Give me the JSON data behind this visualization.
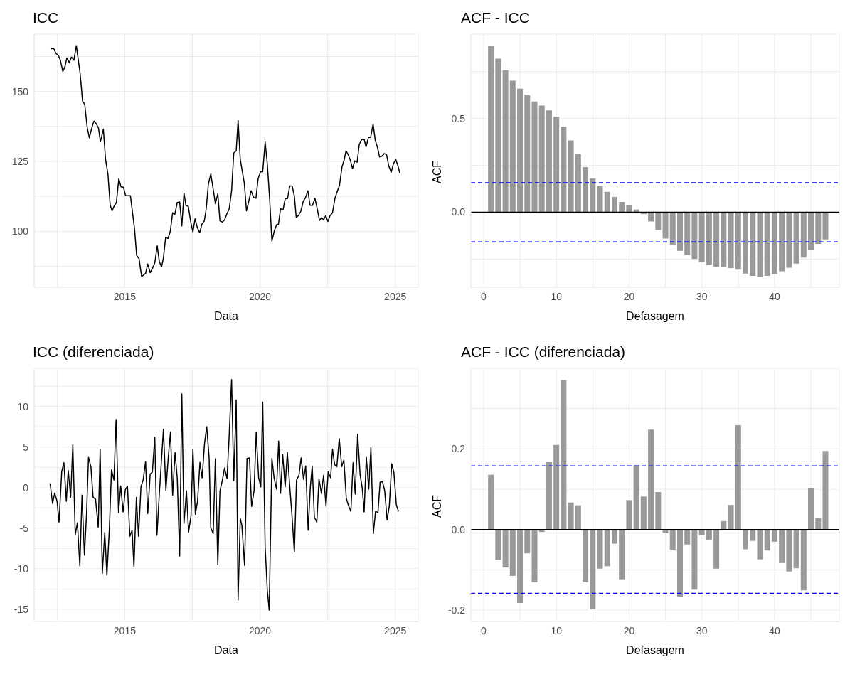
{
  "chart_data": [
    {
      "type": "line",
      "title": "ICC",
      "xlabel": "Data",
      "color": "#000000",
      "grid": true,
      "xlim": [
        2011.65,
        2025.85
      ],
      "xticks": [
        {
          "value": 2012.5,
          "label": null
        },
        2015,
        {
          "value": 2017.5,
          "label": null
        },
        2020,
        {
          "value": 2022.5,
          "label": null
        },
        2025
      ],
      "ylim": [
        80,
        170.5
      ],
      "yticks": [
        {
          "value": 87.5,
          "label": null
        },
        100,
        {
          "value": 112.5,
          "label": null
        },
        125,
        {
          "value": 137.5,
          "label": null
        },
        150,
        {
          "value": 162.5,
          "label": null
        }
      ],
      "x": [
        2012.28,
        2012.37,
        2012.45,
        2012.54,
        2012.62,
        2012.71,
        2012.79,
        2012.86,
        2012.95,
        2013.03,
        2013.12,
        2013.21,
        2013.35,
        2013.44,
        2013.52,
        2013.61,
        2013.69,
        2013.78,
        2013.86,
        2013.95,
        2014.03,
        2014.1,
        2014.21,
        2014.29,
        2014.38,
        2014.46,
        2014.53,
        2014.61,
        2014.69,
        2014.78,
        2014.86,
        2014.95,
        2015.03,
        2015.21,
        2015.36,
        2015.44,
        2015.53,
        2015.62,
        2015.68,
        2015.77,
        2015.85,
        2015.94,
        2016.03,
        2016.11,
        2016.2,
        2016.28,
        2016.36,
        2016.43,
        2016.51,
        2016.6,
        2016.68,
        2016.77,
        2016.85,
        2016.94,
        2017.03,
        2017.11,
        2017.19,
        2017.26,
        2017.35,
        2017.44,
        2017.52,
        2017.6,
        2017.68,
        2017.77,
        2017.85,
        2017.94,
        2018.01,
        2018.09,
        2018.18,
        2018.26,
        2018.35,
        2018.44,
        2018.52,
        2018.61,
        2018.69,
        2018.78,
        2018.86,
        2018.95,
        2019.03,
        2019.12,
        2019.19,
        2019.27,
        2019.42,
        2019.5,
        2019.59,
        2019.67,
        2019.76,
        2019.85,
        2019.93,
        2020.02,
        2020.1,
        2020.19,
        2020.27,
        2020.36,
        2020.44,
        2020.53,
        2020.62,
        2020.68,
        2020.76,
        2020.85,
        2020.93,
        2021.02,
        2021.1,
        2021.19,
        2021.27,
        2021.34,
        2021.43,
        2021.51,
        2021.6,
        2021.68,
        2021.77,
        2021.85,
        2021.94,
        2022.03,
        2022.11,
        2022.2,
        2022.28,
        2022.35,
        2022.43,
        2022.51,
        2022.59,
        2022.68,
        2022.77,
        2022.85,
        2022.94,
        2023.03,
        2023.11,
        2023.18,
        2023.26,
        2023.35,
        2023.42,
        2023.5,
        2023.59,
        2023.67,
        2023.76,
        2023.85,
        2023.92,
        2024.01,
        2024.09,
        2024.18,
        2024.26,
        2024.35,
        2024.42,
        2024.51,
        2024.59,
        2024.68,
        2024.76,
        2024.85,
        2024.93,
        2025.02,
        2025.1,
        2025.17
      ],
      "values": [
        165.2,
        165.5,
        163.7,
        162.9,
        161.2,
        157.1,
        158.9,
        162.0,
        160.3,
        162.3,
        161.2,
        166.4,
        156.5,
        146.5,
        145.4,
        137.3,
        133.4,
        136.9,
        139.4,
        138.4,
        136.9,
        132.0,
        136.5,
        125.7,
        120.3,
        109.5,
        107.3,
        109.1,
        110.3,
        118.8,
        115.9,
        115.8,
        112.8,
        112.7,
        101.0,
        91.4,
        90.2,
        84.0,
        84.2,
        85.0,
        88.3,
        85.2,
        86.9,
        88.7,
        94.8,
        89.1,
        87.3,
        90.6,
        97.7,
        97.5,
        99.8,
        106.6,
        106.0,
        110.3,
        110.5,
        101.9,
        113.7,
        109.3,
        108.9,
        103.3,
        99.8,
        104.5,
        101.4,
        99.5,
        102.5,
        103.7,
        107.9,
        116.8,
        120.5,
        115.7,
        109.9,
        113.4,
        103.7,
        103.3,
        104.1,
        106.4,
        107.9,
        114.5,
        128.0,
        128.8,
        139.6,
        125.7,
        117.2,
        107.3,
        111.0,
        114.5,
        112.2,
        111.8,
        118.8,
        121.3,
        121.3,
        131.9,
        124.1,
        111.0,
        96.5,
        100.2,
        102.5,
        102.4,
        108.1,
        107.6,
        111.6,
        111.8,
        116.2,
        116.2,
        112.6,
        104.9,
        105.8,
        107.2,
        110.8,
        112.0,
        114.5,
        109.3,
        109.3,
        111.8,
        108.3,
        103.9,
        104.9,
        104.1,
        105.6,
        103.5,
        105.6,
        106.6,
        111.8,
        114.1,
        116.4,
        123.0,
        125.5,
        128.8,
        127.4,
        125.1,
        122.4,
        125.2,
        124.7,
        131.1,
        132.8,
        132.8,
        130.1,
        133.6,
        133.6,
        138.4,
        132.6,
        129.7,
        126.6,
        126.9,
        127.8,
        127.4,
        123.4,
        121.1,
        124.1,
        125.7,
        123.4,
        120.7
      ]
    },
    {
      "type": "bar",
      "title": "ACF - ICC",
      "xlabel": "Defasagem",
      "ylabel": "ACF",
      "color": "#999999",
      "grid": true,
      "xlim": [
        -1.76,
        48.9
      ],
      "xticks": [
        0,
        {
          "value": 5,
          "label": null
        },
        10,
        {
          "value": 15,
          "label": null
        },
        20,
        {
          "value": 25,
          "label": null
        },
        30,
        {
          "value": 35,
          "label": null
        },
        40,
        {
          "value": 45,
          "label": null
        }
      ],
      "ylim": [
        -0.4,
        0.95
      ],
      "yticks": [
        {
          "value": -0.25,
          "label": null
        },
        {
          "value": 0,
          "label": "0.0"
        },
        {
          "value": 0.25,
          "label": null
        },
        0.5,
        {
          "value": 0.75,
          "label": null
        }
      ],
      "x": [
        1,
        2,
        3,
        4,
        5,
        6,
        7,
        8,
        9,
        10,
        11,
        12,
        13,
        14,
        15,
        16,
        17,
        18,
        19,
        20,
        21,
        22,
        23,
        24,
        25,
        26,
        27,
        28,
        29,
        30,
        31,
        32,
        33,
        34,
        35,
        36,
        37,
        38,
        39,
        40,
        41,
        42,
        43,
        44,
        45,
        46,
        47
      ],
      "values": [
        0.887,
        0.819,
        0.758,
        0.702,
        0.659,
        0.624,
        0.591,
        0.569,
        0.543,
        0.509,
        0.456,
        0.383,
        0.31,
        0.241,
        0.18,
        0.14,
        0.109,
        0.082,
        0.055,
        0.037,
        0.015,
        -0.01,
        -0.049,
        -0.094,
        -0.14,
        -0.176,
        -0.206,
        -0.228,
        -0.249,
        -0.265,
        -0.279,
        -0.291,
        -0.293,
        -0.298,
        -0.306,
        -0.327,
        -0.339,
        -0.343,
        -0.339,
        -0.329,
        -0.315,
        -0.296,
        -0.274,
        -0.242,
        -0.202,
        -0.169,
        -0.145
      ],
      "ref_lines": [
        {
          "axis": "y",
          "value": 0,
          "color": "#000000",
          "line_style": "solid"
        },
        {
          "axis": "y",
          "value": 0.158,
          "color": "#0000ff",
          "line_style": "dashed"
        },
        {
          "axis": "y",
          "value": -0.158,
          "color": "#0000ff",
          "line_style": "dashed"
        }
      ]
    },
    {
      "type": "line",
      "title": "ICC (diferenciada)",
      "xlabel": "Data",
      "color": "#000000",
      "grid": true,
      "xlim": [
        2011.65,
        2025.85
      ],
      "xticks": [
        {
          "value": 2012.5,
          "label": null
        },
        2015,
        {
          "value": 2017.5,
          "label": null
        },
        2020,
        {
          "value": 2022.5,
          "label": null
        },
        2025
      ],
      "ylim": [
        -16.5,
        14.7
      ],
      "yticks": [
        -15,
        {
          "value": -12.5,
          "label": null
        },
        -10,
        {
          "value": -7.5,
          "label": null
        },
        -5,
        {
          "value": -2.5,
          "label": null
        },
        0,
        {
          "value": 2.5,
          "label": null
        },
        5,
        {
          "value": 7.5,
          "label": null
        },
        10,
        {
          "value": 12.5,
          "label": null
        }
      ],
      "x": [
        2012.24,
        2012.33,
        2012.41,
        2012.5,
        2012.57,
        2012.67,
        2012.75,
        2012.84,
        2012.91,
        2013.0,
        2013.08,
        2013.17,
        2013.25,
        2013.34,
        2013.42,
        2013.51,
        2013.59,
        2013.66,
        2013.75,
        2013.83,
        2013.92,
        2014.02,
        2014.09,
        2014.17,
        2014.26,
        2014.34,
        2014.43,
        2014.51,
        2014.6,
        2014.68,
        2014.77,
        2014.85,
        2014.94,
        2015.02,
        2015.1,
        2015.19,
        2015.27,
        2015.34,
        2015.43,
        2015.51,
        2015.6,
        2015.68,
        2015.77,
        2015.85,
        2015.94,
        2016.02,
        2016.11,
        2016.19,
        2016.28,
        2016.43,
        2016.52,
        2016.6,
        2016.69,
        2016.77,
        2016.86,
        2016.94,
        2017.03,
        2017.11,
        2017.19,
        2017.28,
        2017.36,
        2017.45,
        2017.52,
        2017.61,
        2017.69,
        2017.78,
        2017.86,
        2017.95,
        2018.03,
        2018.12,
        2018.18,
        2018.27,
        2018.35,
        2018.44,
        2018.52,
        2018.61,
        2018.69,
        2018.78,
        2018.86,
        2018.95,
        2019.03,
        2019.12,
        2019.19,
        2019.27,
        2019.33,
        2019.43,
        2019.52,
        2019.61,
        2019.69,
        2019.78,
        2019.86,
        2019.95,
        2020.03,
        2020.1,
        2020.19,
        2020.27,
        2020.34,
        2020.44,
        2020.52,
        2020.61,
        2020.69,
        2020.76,
        2020.84,
        2020.93,
        2021.01,
        2021.1,
        2021.18,
        2021.27,
        2021.35,
        2021.44,
        2021.52,
        2021.61,
        2021.69,
        2021.78,
        2021.86,
        2021.93,
        2022.01,
        2022.1,
        2022.18,
        2022.27,
        2022.35,
        2022.44,
        2022.52,
        2022.61,
        2022.68,
        2022.76,
        2022.84,
        2022.93,
        2023.02,
        2023.1,
        2023.19,
        2023.27,
        2023.36,
        2023.44,
        2023.52,
        2023.61,
        2023.7,
        2023.78,
        2023.85,
        2023.93,
        2024.02,
        2024.1,
        2024.19,
        2024.27,
        2024.36,
        2024.44,
        2024.53,
        2024.61,
        2024.7,
        2024.78,
        2024.87,
        2024.95,
        2025.04,
        2025.12
      ],
      "values": [
        0.53,
        -1.95,
        -0.67,
        -1.73,
        -4.27,
        2.0,
        3.07,
        -1.68,
        2.13,
        -1.2,
        5.25,
        -5.79,
        -4.35,
        -9.65,
        -0.93,
        -8.32,
        -3.07,
        3.73,
        2.53,
        -1.2,
        -1.41,
        -4.88,
        4.72,
        -10.59,
        -5.55,
        -10.8,
        -5.2,
        2.19,
        0.93,
        8.4,
        -3.07,
        0.19,
        -3.01,
        -0.27,
        0.19,
        -6.0,
        -5.25,
        -9.73,
        -1.2,
        -6.0,
        0.13,
        0.93,
        3.2,
        -3.2,
        1.65,
        1.92,
        6.19,
        -5.87,
        -0.67,
        7.2,
        -0.35,
        3.33,
        6.85,
        -0.93,
        4.32,
        1.2,
        -8.45,
        11.55,
        -4.4,
        -0.4,
        -5.47,
        -3.47,
        4.72,
        -3.28,
        -1.73,
        3.12,
        1.2,
        5.47,
        7.52,
        3.6,
        -4.93,
        -5.68,
        3.55,
        -9.52,
        -0.4,
        0.93,
        2.4,
        1.12,
        6.4,
        13.33,
        0.85,
        10.8,
        -13.87,
        -3.81,
        -4.67,
        -9.6,
        3.6,
        3.65,
        -2.32,
        -0.4,
        6.8,
        1.2,
        0.08,
        10.53,
        -7.33,
        -12.67,
        -15.12,
        3.6,
        1.2,
        -0.19,
        5.73,
        -0.72,
        4.05,
        0.08,
        4.35,
        0.13,
        -3.33,
        -7.95,
        0.93,
        1.52,
        3.65,
        1.01,
        2.67,
        -5.25,
        0.05,
        2.67,
        -3.65,
        -4.27,
        1.07,
        -0.72,
        1.52,
        -2.27,
        1.95,
        1.2,
        4.72,
        2.8,
        2.59,
        6.05,
        2.59,
        3.39,
        -1.33,
        -2.21,
        -2.93,
        3.07,
        -0.8,
        6.59,
        1.6,
        -0.05,
        -3.01,
        3.73,
        -0.19,
        4.93,
        -5.68,
        -2.93,
        -3.07,
        0.67,
        0.72,
        -0.4,
        -4.0,
        -2.27,
        2.93,
        1.87,
        -2.13,
        -2.93
      ]
    },
    {
      "type": "bar",
      "title": "ACF - ICC (diferenciada)",
      "xlabel": "Defasagem",
      "ylabel": "ACF",
      "color": "#999999",
      "grid": true,
      "xlim": [
        -1.76,
        48.9
      ],
      "xticks": [
        0,
        {
          "value": 5,
          "label": null
        },
        10,
        {
          "value": 15,
          "label": null
        },
        20,
        {
          "value": 25,
          "label": null
        },
        30,
        {
          "value": 35,
          "label": null
        },
        40,
        {
          "value": 45,
          "label": null
        }
      ],
      "ylim": [
        -0.228,
        0.4
      ],
      "yticks": [
        {
          "value": -0.2,
          "label": "-0.2"
        },
        {
          "value": -0.1,
          "label": null
        },
        {
          "value": 0,
          "label": "0.0"
        },
        {
          "value": 0.1,
          "label": null
        },
        0.2,
        {
          "value": 0.3,
          "label": null
        }
      ],
      "x": [
        1,
        2,
        3,
        4,
        5,
        6,
        7,
        8,
        9,
        10,
        11,
        12,
        13,
        14,
        15,
        16,
        17,
        18,
        19,
        20,
        21,
        22,
        23,
        24,
        25,
        26,
        27,
        28,
        29,
        30,
        31,
        32,
        33,
        34,
        35,
        36,
        37,
        38,
        39,
        40,
        41,
        42,
        43,
        44,
        45,
        46,
        47
      ],
      "values": [
        0.136,
        -0.075,
        -0.094,
        -0.115,
        -0.182,
        -0.059,
        -0.131,
        -0.006,
        0.167,
        0.21,
        0.371,
        0.067,
        0.06,
        -0.131,
        -0.198,
        -0.097,
        -0.091,
        -0.035,
        -0.125,
        0.073,
        0.159,
        0.082,
        0.248,
        0.093,
        -0.009,
        -0.05,
        -0.168,
        -0.037,
        -0.149,
        -0.014,
        -0.026,
        -0.097,
        0.021,
        0.061,
        0.259,
        -0.049,
        -0.028,
        -0.074,
        -0.052,
        -0.03,
        -0.083,
        -0.104,
        -0.096,
        -0.151,
        0.103,
        0.028,
        0.195
      ],
      "ref_lines": [
        {
          "axis": "y",
          "value": 0,
          "color": "#000000",
          "line_style": "solid"
        },
        {
          "axis": "y",
          "value": 0.158,
          "color": "#0000ff",
          "line_style": "dashed"
        },
        {
          "axis": "y",
          "value": -0.158,
          "color": "#0000ff",
          "line_style": "dashed"
        }
      ]
    }
  ]
}
